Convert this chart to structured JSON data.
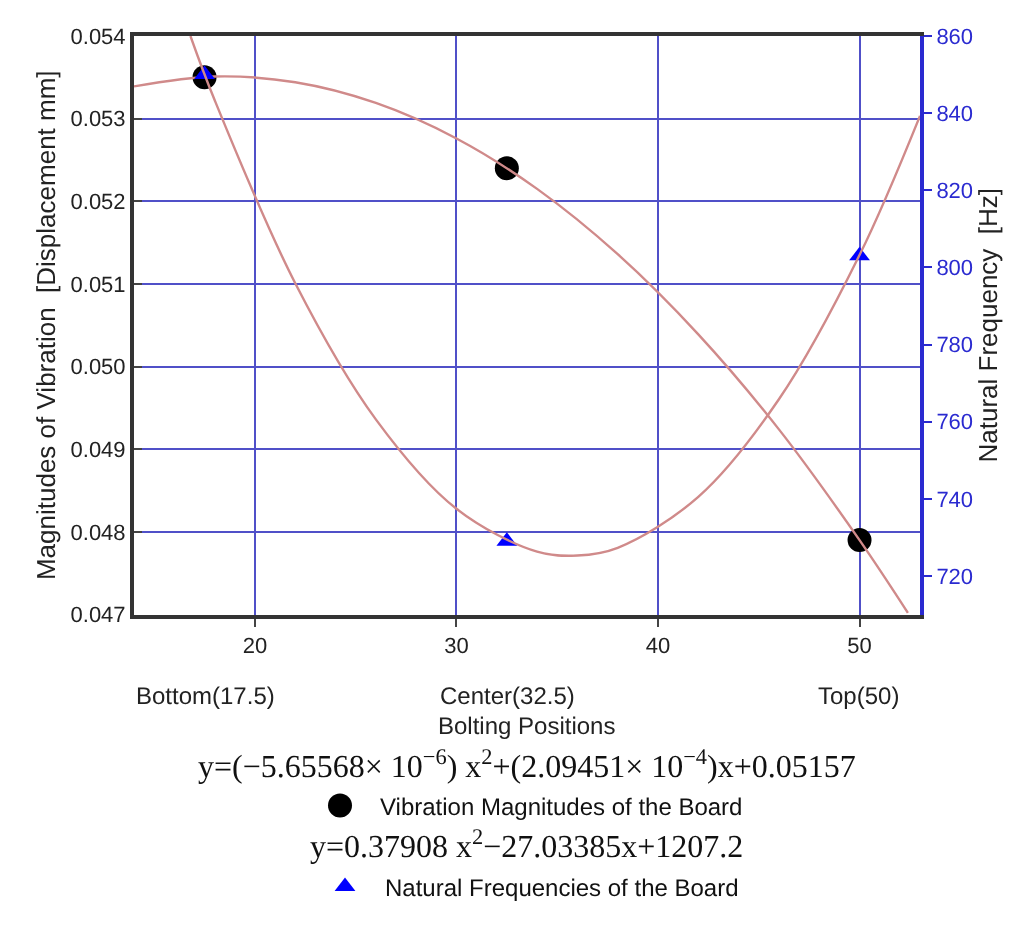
{
  "chart_data": {
    "type": "scatter",
    "xlabel": "Bolting Positions",
    "ylabel": "Magnitudes of Vibration  [Displacement mm]",
    "y2label": "Natural Frequency  [Hz]",
    "xlim": [
      14,
      53
    ],
    "xticks": [
      20,
      30,
      40,
      50
    ],
    "ylim": [
      0.047,
      0.054
    ],
    "yticks": [
      0.047,
      0.048,
      0.049,
      {
        "value": 0.05,
        "label": "0.050"
      },
      0.051,
      0.052,
      0.053,
      0.054
    ],
    "y2lim": [
      710,
      860
    ],
    "y2ticks": [
      720,
      740,
      760,
      780,
      800,
      820,
      840,
      860
    ],
    "grid": true,
    "legend": "bottom",
    "series": [
      {
        "name": "Vibration Magnitudes of the Board",
        "marker": "circle",
        "color": "#000000",
        "x": [
          17.5,
          32.5,
          50
        ],
        "values": [
          0.0535,
          0.0524,
          0.0479
        ]
      },
      {
        "type": "line",
        "color": "#d08a8a",
        "x": [
          14,
          18,
          22,
          26,
          30,
          34,
          38,
          42,
          46,
          50,
          52.4
        ],
        "values": [
          0.05339,
          0.05351,
          0.05344,
          0.05319,
          0.05276,
          0.05215,
          0.05136,
          0.05039,
          0.04924,
          0.0479,
          0.04702
        ]
      },
      {
        "name": "Natural Frequencies of the Board",
        "marker": "triangle",
        "color": "#0000ff",
        "axis": "y2",
        "x": [
          17.5,
          32.5,
          50
        ],
        "values": [
          850,
          729,
          803
        ]
      },
      {
        "type": "line",
        "color": "#d08a8a",
        "axis": "y2",
        "x": [
          16.8,
          18,
          22,
          26,
          30,
          34,
          36,
          38,
          42,
          46,
          50,
          53
        ],
        "values": [
          860,
          843.4,
          795.9,
          760.6,
          737.4,
          726.3,
          725.3,
          727.3,
          740.5,
          765.8,
          803.2,
          839.3
        ]
      }
    ],
    "annotations": [
      "Bottom(17.5)",
      "Center(32.5)",
      "Top(50)",
      "y=(−5.65568× 10$^{−6}$) x$^{2}$+(2.09451× 10$^{−4}$)x+0.05157",
      "y=0.37908 x$^{2}$−27.03385x+1207.2"
    ]
  }
}
